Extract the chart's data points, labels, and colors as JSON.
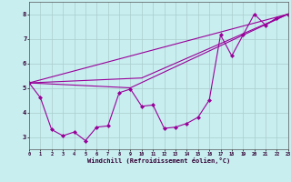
{
  "background_color": "#c8eef0",
  "grid_color": "#aacccc",
  "line_color": "#990099",
  "xlabel": "Windchill (Refroidissement éolien,°C)",
  "xlim": [
    0,
    23
  ],
  "ylim": [
    2.5,
    8.5
  ],
  "yticks": [
    3,
    4,
    5,
    6,
    7,
    8
  ],
  "xticks": [
    0,
    1,
    2,
    3,
    4,
    5,
    6,
    7,
    8,
    9,
    10,
    11,
    12,
    13,
    14,
    15,
    16,
    17,
    18,
    19,
    20,
    21,
    22,
    23
  ],
  "xtick_labels": [
    "0",
    "1",
    "2",
    "3",
    "4",
    "5",
    "6",
    "7",
    "8",
    "9",
    "10",
    "11",
    "12",
    "13",
    "14",
    "15",
    "16",
    "17",
    "18",
    "19",
    "20",
    "21",
    "22",
    "23"
  ],
  "line1_x": [
    0,
    1,
    2,
    3,
    4,
    5,
    6,
    7,
    8,
    9,
    10,
    11,
    12,
    13,
    14,
    15,
    16,
    17,
    18,
    19,
    20,
    21,
    22,
    23
  ],
  "line1_y": [
    5.2,
    4.6,
    3.3,
    3.05,
    3.2,
    2.85,
    3.4,
    3.45,
    4.8,
    4.95,
    4.25,
    4.3,
    3.35,
    3.4,
    3.55,
    3.8,
    4.5,
    7.15,
    6.3,
    7.15,
    8.0,
    7.55,
    7.85,
    8.0
  ],
  "line2_x": [
    0,
    23
  ],
  "line2_y": [
    5.2,
    8.0
  ],
  "line3_x": [
    0,
    9,
    23
  ],
  "line3_y": [
    5.2,
    5.0,
    8.0
  ],
  "line4_x": [
    0,
    10,
    23
  ],
  "line4_y": [
    5.2,
    5.4,
    8.0
  ]
}
